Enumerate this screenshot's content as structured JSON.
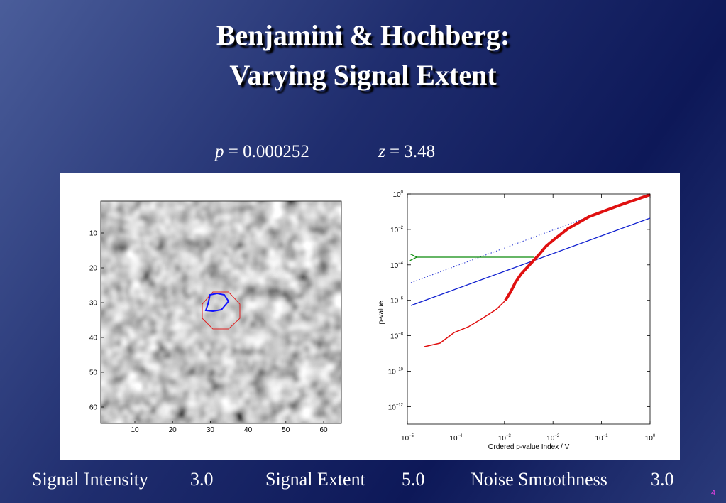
{
  "slide": {
    "title_lines": [
      "Benjamini & Hochberg:",
      "Varying Signal Extent"
    ],
    "p_stat": {
      "var": "p",
      "rest": "= 0.000252"
    },
    "z_stat": {
      "var": "z",
      "rest": "= 3.48"
    },
    "image_panel": {
      "yticks": [
        "10",
        "20",
        "30",
        "40",
        "50",
        "60"
      ],
      "xticks": [
        "10",
        "20",
        "30",
        "40",
        "50",
        "60"
      ]
    },
    "pvalue_plot": {
      "ylabel": "p-value",
      "xlabel": "Ordered p-value Index / V",
      "yticks": [
        {
          "base": "10",
          "exp": "0"
        },
        {
          "base": "10",
          "exp": "−2"
        },
        {
          "base": "10",
          "exp": "−4"
        },
        {
          "base": "10",
          "exp": "−6"
        },
        {
          "base": "10",
          "exp": "−8"
        },
        {
          "base": "10",
          "exp": "−10"
        },
        {
          "base": "10",
          "exp": "−12"
        }
      ],
      "xticks": [
        {
          "base": "10",
          "exp": "−5"
        },
        {
          "base": "10",
          "exp": "−4"
        },
        {
          "base": "10",
          "exp": "−3"
        },
        {
          "base": "10",
          "exp": "−2"
        },
        {
          "base": "10",
          "exp": "−1"
        },
        {
          "base": "10",
          "exp": "0"
        }
      ]
    },
    "footer": [
      {
        "label": "Signal Intensity",
        "value": "3.0"
      },
      {
        "label": "Signal Extent",
        "value": "5.0"
      },
      {
        "label": "Noise Smoothness",
        "value": "3.0"
      }
    ],
    "page_number": "4"
  }
}
